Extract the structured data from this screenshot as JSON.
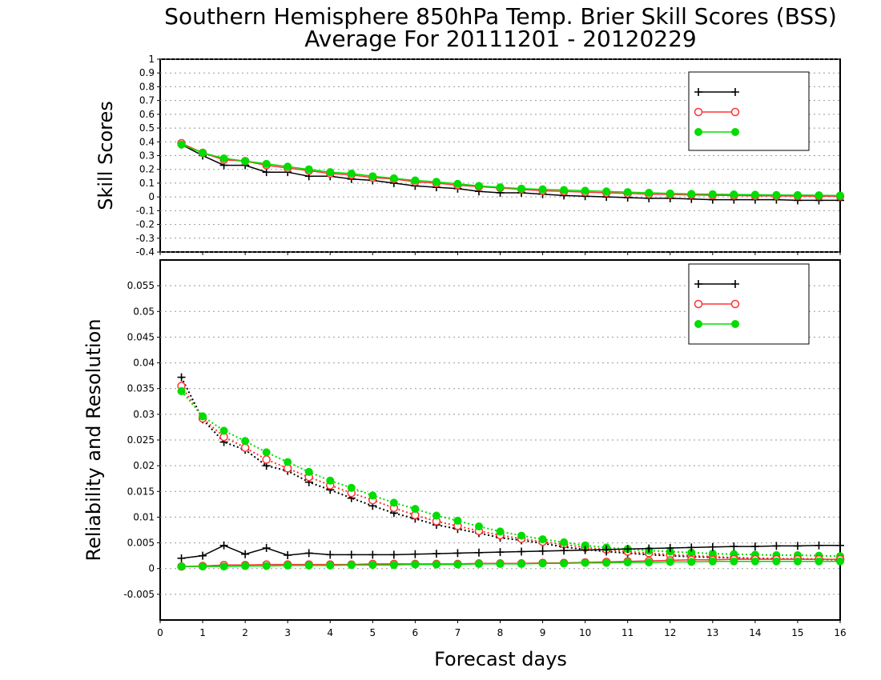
{
  "chart_title": {
    "line1": "Southern Hemisphere 850hPa Temp. Brier Skill Scores (BSS)",
    "line2": "Average For 20111201 - 20120229"
  },
  "xlabel": "Forecast days",
  "colors": {
    "series1": "#000000",
    "series2": "#ff3333",
    "series3": "#00dd00"
  },
  "chart_data": [
    {
      "type": "line",
      "ylabel": "Skill Scores",
      "xlim": [
        0,
        16
      ],
      "ylim": [
        -0.4,
        1
      ],
      "xticks": [
        "0",
        "1",
        "2",
        "3",
        "4",
        "5",
        "6",
        "7",
        "8",
        "9",
        "10",
        "11",
        "12",
        "13",
        "14",
        "15",
        "16"
      ],
      "yticks": [
        "-0.4",
        "-0.3",
        "-0.2",
        "-0.1",
        "0",
        "0.1",
        "0.2",
        "0.3",
        "0.4",
        "0.5",
        "0.6",
        "0.7",
        "0.8",
        "0.9",
        "1"
      ],
      "grid": true,
      "legend_position": "top-right",
      "x": [
        0.5,
        1,
        1.5,
        2,
        2.5,
        3,
        3.5,
        4,
        4.5,
        5,
        5.5,
        6,
        6.5,
        7,
        7.5,
        8,
        8.5,
        9,
        9.5,
        10,
        10.5,
        11,
        11.5,
        12,
        12.5,
        13,
        13.5,
        14,
        14.5,
        15,
        15.5,
        16
      ],
      "series": [
        {
          "name": "",
          "marker": "plus",
          "color": "#000000",
          "values": [
            0.38,
            0.3,
            0.23,
            0.23,
            0.18,
            0.18,
            0.15,
            0.15,
            0.13,
            0.12,
            0.1,
            0.08,
            0.07,
            0.06,
            0.04,
            0.03,
            0.03,
            0.02,
            0.01,
            0.005,
            0.0,
            -0.005,
            -0.01,
            -0.01,
            -0.015,
            -0.02,
            -0.02,
            -0.02,
            -0.02,
            -0.025,
            -0.025,
            -0.025
          ]
        },
        {
          "name": "",
          "marker": "circle-open",
          "color": "#ff3333",
          "values": [
            0.39,
            0.32,
            0.27,
            0.26,
            0.23,
            0.21,
            0.19,
            0.17,
            0.16,
            0.14,
            0.13,
            0.11,
            0.1,
            0.085,
            0.075,
            0.065,
            0.055,
            0.045,
            0.04,
            0.035,
            0.03,
            0.025,
            0.02,
            0.018,
            0.015,
            0.012,
            0.01,
            0.008,
            0.007,
            0.006,
            0.005,
            0.004
          ]
        },
        {
          "name": "",
          "marker": "circle-filled",
          "color": "#00dd00",
          "values": [
            0.38,
            0.32,
            0.28,
            0.26,
            0.24,
            0.22,
            0.2,
            0.18,
            0.17,
            0.15,
            0.135,
            0.12,
            0.11,
            0.095,
            0.08,
            0.07,
            0.06,
            0.055,
            0.05,
            0.045,
            0.04,
            0.035,
            0.03,
            0.025,
            0.022,
            0.02,
            0.018,
            0.016,
            0.014,
            0.013,
            0.012,
            0.01
          ]
        }
      ]
    },
    {
      "type": "line",
      "ylabel": "Reliability and Resolution",
      "xlim": [
        0,
        16
      ],
      "ylim": [
        -0.01,
        0.06
      ],
      "xticks": [
        "0",
        "1",
        "2",
        "3",
        "4",
        "5",
        "6",
        "7",
        "8",
        "9",
        "10",
        "11",
        "12",
        "13",
        "14",
        "15",
        "16"
      ],
      "yticks": [
        "-0.005",
        "0",
        "0.005",
        "0.01",
        "0.015",
        "0.02",
        "0.025",
        "0.03",
        "0.035",
        "0.04",
        "0.045",
        "0.05",
        "0.055"
      ],
      "grid": true,
      "legend_position": "top-right",
      "x": [
        0.5,
        1,
        1.5,
        2,
        2.5,
        3,
        3.5,
        4,
        4.5,
        5,
        5.5,
        6,
        6.5,
        7,
        7.5,
        8,
        8.5,
        9,
        9.5,
        10,
        10.5,
        11,
        11.5,
        12,
        12.5,
        13,
        13.5,
        14,
        14.5,
        15,
        15.5,
        16
      ],
      "series": [
        {
          "name": "",
          "marker": "plus",
          "color": "#000000",
          "linestyle": "dotted",
          "quantity": "resolution",
          "values": [
            0.0372,
            0.029,
            0.0246,
            0.0231,
            0.02,
            0.019,
            0.0168,
            0.0153,
            0.0137,
            0.0122,
            0.0108,
            0.0097,
            0.0085,
            0.0077,
            0.0069,
            0.006,
            0.0055,
            0.0049,
            0.0042,
            0.0037,
            0.0033,
            0.003,
            0.0027,
            0.0025,
            0.0023,
            0.0022,
            0.0021,
            0.002,
            0.0019,
            0.0019,
            0.0018,
            0.0017
          ]
        },
        {
          "name": "",
          "marker": "circle-open",
          "color": "#ff3333",
          "linestyle": "dotted",
          "quantity": "resolution",
          "values": [
            0.0355,
            0.0292,
            0.0256,
            0.0235,
            0.0212,
            0.0195,
            0.0178,
            0.0162,
            0.0147,
            0.0133,
            0.0118,
            0.0104,
            0.0092,
            0.0083,
            0.0073,
            0.0065,
            0.0058,
            0.0052,
            0.0047,
            0.0041,
            0.0037,
            0.0033,
            0.003,
            0.0027,
            0.0025,
            0.0023,
            0.0021,
            0.002,
            0.0019,
            0.0019,
            0.0018,
            0.0017
          ]
        },
        {
          "name": "",
          "marker": "circle-filled",
          "color": "#00dd00",
          "linestyle": "dotted",
          "quantity": "resolution",
          "values": [
            0.0345,
            0.0296,
            0.0268,
            0.0248,
            0.0226,
            0.0207,
            0.0188,
            0.0171,
            0.0157,
            0.0142,
            0.0128,
            0.0116,
            0.0103,
            0.0093,
            0.0082,
            0.0072,
            0.0064,
            0.0057,
            0.0051,
            0.0045,
            0.0041,
            0.0038,
            0.0035,
            0.0033,
            0.0031,
            0.0029,
            0.0028,
            0.0027,
            0.0026,
            0.0026,
            0.0025,
            0.0024
          ]
        },
        {
          "name": "",
          "marker": "plus",
          "color": "#000000",
          "linestyle": "solid",
          "quantity": "reliability",
          "values": [
            0.002,
            0.0025,
            0.0045,
            0.0028,
            0.004,
            0.0026,
            0.003,
            0.0027,
            0.0027,
            0.0027,
            0.0027,
            0.0028,
            0.0029,
            0.003,
            0.0031,
            0.0032,
            0.0033,
            0.0034,
            0.0035,
            0.0036,
            0.0037,
            0.0038,
            0.0039,
            0.004,
            0.0041,
            0.0042,
            0.0043,
            0.0043,
            0.0044,
            0.0044,
            0.0045,
            0.0045
          ]
        },
        {
          "name": "",
          "marker": "circle-open",
          "color": "#ff3333",
          "linestyle": "solid",
          "quantity": "reliability",
          "values": [
            0.0004,
            0.0005,
            0.0007,
            0.0007,
            0.0008,
            0.0008,
            0.0008,
            0.0008,
            0.0008,
            0.0009,
            0.0009,
            0.0009,
            0.0009,
            0.0009,
            0.001,
            0.001,
            0.001,
            0.0011,
            0.0011,
            0.0012,
            0.0013,
            0.0014,
            0.0015,
            0.0016,
            0.0017,
            0.0017,
            0.0018,
            0.0018,
            0.0018,
            0.0018,
            0.0018,
            0.0018
          ]
        },
        {
          "name": "",
          "marker": "circle-filled",
          "color": "#00dd00",
          "linestyle": "solid",
          "quantity": "reliability",
          "values": [
            0.0004,
            0.0004,
            0.0004,
            0.0005,
            0.0005,
            0.0006,
            0.0006,
            0.0006,
            0.0007,
            0.0007,
            0.0007,
            0.0008,
            0.0008,
            0.0008,
            0.0009,
            0.0009,
            0.0009,
            0.001,
            0.001,
            0.0011,
            0.0011,
            0.0012,
            0.0012,
            0.0013,
            0.0013,
            0.0014,
            0.0014,
            0.0014,
            0.0014,
            0.0014,
            0.0014,
            0.0014
          ]
        }
      ]
    }
  ]
}
